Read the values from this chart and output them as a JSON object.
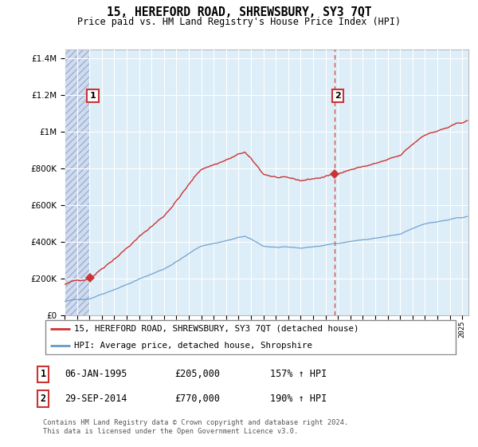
{
  "title": "15, HEREFORD ROAD, SHREWSBURY, SY3 7QT",
  "subtitle": "Price paid vs. HM Land Registry's House Price Index (HPI)",
  "sale1_date": 1995.04,
  "sale1_price": 205000,
  "sale2_date": 2014.75,
  "sale2_price": 770000,
  "legend_line1": "15, HEREFORD ROAD, SHREWSBURY, SY3 7QT (detached house)",
  "legend_line2": "HPI: Average price, detached house, Shropshire",
  "ann1_date": "06-JAN-1995",
  "ann1_price": "£205,000",
  "ann1_pct": "157% ↑ HPI",
  "ann2_date": "29-SEP-2014",
  "ann2_price": "£770,000",
  "ann2_pct": "190% ↑ HPI",
  "footnote": "Contains HM Land Registry data © Crown copyright and database right 2024.\nThis data is licensed under the Open Government Licence v3.0.",
  "hpi_color": "#6699cc",
  "price_color": "#cc3333",
  "ylim": [
    0,
    1450000
  ],
  "xlim_start": 1993.0,
  "xlim_end": 2025.5
}
